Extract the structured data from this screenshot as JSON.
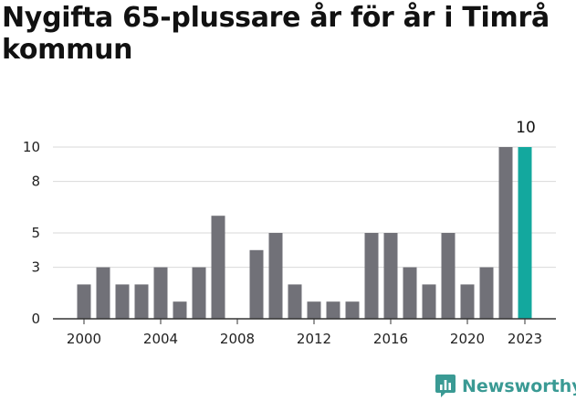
{
  "chart_data": {
    "type": "bar",
    "title": "Nygifta 65-plussare år för år i Timrå kommun",
    "xlabel": "",
    "ylabel": "",
    "x": [
      2000,
      2001,
      2002,
      2003,
      2004,
      2005,
      2006,
      2007,
      2008,
      2009,
      2010,
      2011,
      2012,
      2013,
      2014,
      2015,
      2016,
      2017,
      2018,
      2019,
      2020,
      2021,
      2022,
      2023
    ],
    "values": [
      2,
      3,
      2,
      2,
      3,
      1,
      3,
      6,
      0,
      4,
      5,
      2,
      1,
      1,
      1,
      5,
      5,
      3,
      2,
      5,
      2,
      3,
      10,
      10
    ],
    "ylim": [
      0,
      10
    ],
    "y_ticks": [
      0,
      3,
      5,
      8,
      10
    ],
    "x_ticks": [
      "2000",
      "2004",
      "2008",
      "2012",
      "2016",
      "2020",
      "2023"
    ],
    "highlight_label": "10",
    "grid": true,
    "bar_color": "#717178",
    "highlight_color": "#13a89e"
  },
  "brand": {
    "name": "Newsworthy",
    "icon": "newsworthy-logo-icon",
    "color": "#3a9a94"
  }
}
